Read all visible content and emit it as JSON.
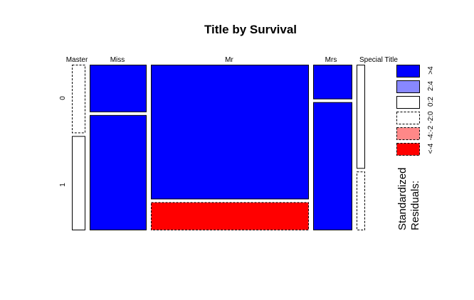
{
  "chart_data": {
    "type": "mosaic",
    "title": "Title by Survival",
    "categories": [
      "Master",
      "Miss",
      "Mr",
      "Mrs",
      "Special Title"
    ],
    "survival_levels": [
      "0",
      "1"
    ],
    "survival_fraction_0": [
      0.42,
      0.29,
      0.83,
      0.21,
      0.64
    ],
    "residual_bins": {
      "0": [
        "negative_0_2",
        "positive_over_4",
        "positive_over_4",
        "positive_over_4",
        "neutral_0_2"
      ],
      "1": [
        "neutral_0_2",
        "positive_over_4",
        "negative_under_4",
        "positive_over_4",
        "negative_0_2"
      ]
    },
    "legend": {
      "title_lines": [
        "Standardized",
        "Residuals:"
      ],
      "tick_labels": [
        ">4",
        "2:4",
        "0:2",
        "-2:0",
        "-4:-2",
        "<-4"
      ],
      "bins": [
        {
          "key": "positive_over_4",
          "color": "#0000ff",
          "dashed": false
        },
        {
          "key": "positive_2_4",
          "color": "#8888ff",
          "dashed": false
        },
        {
          "key": "neutral_0_2",
          "color": "#ffffff",
          "dashed": false
        },
        {
          "key": "negative_0_2",
          "color": "#ffffff",
          "dashed": true
        },
        {
          "key": "negative_2_4",
          "color": "#ff8888",
          "dashed": true
        },
        {
          "key": "negative_under_4",
          "color": "#ff0000",
          "dashed": true
        }
      ]
    }
  }
}
